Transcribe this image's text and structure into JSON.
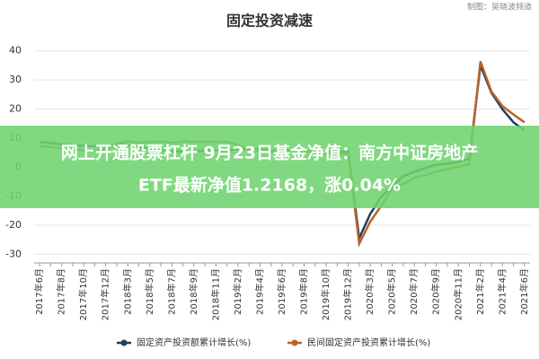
{
  "chart_data": {
    "type": "line",
    "title": "固定投资减速",
    "source": "制图：吴晓波频道",
    "categories": [
      "2017年6月",
      null,
      "2017年8月",
      null,
      "2017年10月",
      null,
      "2017年12月",
      null,
      "2018年3月",
      null,
      "2018年5月",
      null,
      "2018年7月",
      null,
      "2018年9月",
      null,
      "2018年11月",
      null,
      "2019年2月",
      null,
      "2019年4月",
      null,
      "2019年6月",
      null,
      "2019年8月",
      null,
      "2019年10月",
      null,
      "2019年12月",
      null,
      "2020年3月",
      null,
      "2020年5月",
      null,
      "2020年7月",
      null,
      "2020年9月",
      null,
      "2020年11月",
      null,
      "2021年2月",
      null,
      "2021年4月",
      null,
      "2021年6月"
    ],
    "series": [
      {
        "name": "固定资产投资额累计增长(%)",
        "color": "#1f3b5f",
        "values": [
          8.6,
          8.3,
          7.8,
          7.5,
          7.3,
          7.2,
          7.2,
          7.9,
          7.5,
          7.0,
          6.1,
          6.0,
          5.5,
          5.3,
          5.4,
          5.7,
          5.7,
          5.9,
          6.1,
          6.3,
          6.1,
          5.6,
          5.8,
          5.7,
          5.5,
          5.4,
          5.2,
          5.2,
          5.4,
          -24.5,
          -16.1,
          -10.3,
          -6.3,
          -3.1,
          -1.6,
          -0.3,
          0.8,
          1.2,
          1.8,
          2.9,
          35.0,
          25.6,
          19.9,
          15.4,
          12.6
        ]
      },
      {
        "name": "民间固定资产投资累计增长(%)",
        "color": "#b5652c",
        "values": [
          7.2,
          6.9,
          6.4,
          6.0,
          5.8,
          5.7,
          6.0,
          8.1,
          8.9,
          8.4,
          8.7,
          8.8,
          8.4,
          8.7,
          8.7,
          8.7,
          8.7,
          8.7,
          7.5,
          6.4,
          5.5,
          5.3,
          5.7,
          5.7,
          5.4,
          4.9,
          4.7,
          4.5,
          4.7,
          -26.4,
          -18.8,
          -13.3,
          -7.3,
          -5.8,
          -3.7,
          -2.8,
          -1.5,
          -0.7,
          0.2,
          1.0,
          36.4,
          26.0,
          21.0,
          18.1,
          15.4
        ]
      }
    ],
    "ylim": [
      -33,
      43
    ],
    "yticks": [
      -30,
      -20,
      -10,
      0,
      10,
      20,
      30,
      40
    ],
    "grid": true,
    "legend": "bottom"
  },
  "banner": {
    "lines": [
      "网上开通股票杠杆 9月23日基金净值：南方中证房地产",
      "ETF最新净值1.2168，涨0.04%"
    ]
  }
}
